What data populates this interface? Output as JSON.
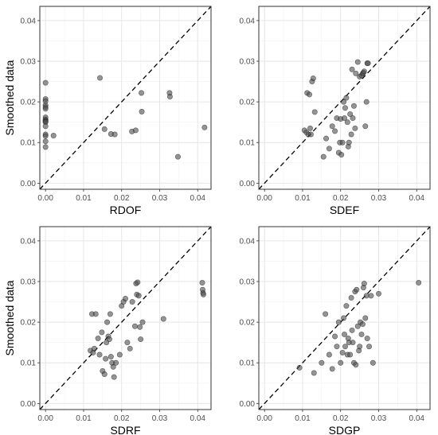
{
  "chart_data": [
    {
      "type": "scatter",
      "xlabel": "RDOF",
      "ylabel": "Smoothed data",
      "xlim": [
        -0.0015,
        0.0435
      ],
      "ylim": [
        -0.0015,
        0.0435
      ],
      "xticks": [
        "0.00",
        "0.01",
        "0.02",
        "0.03",
        "0.04"
      ],
      "yticks": [
        "0.00",
        "0.01",
        "0.02",
        "0.03",
        "0.04"
      ],
      "grid": true,
      "reference_line": "y = x, dashed",
      "point_color": "#4d4d4d",
      "x": [
        0.0,
        0.0,
        0.0,
        0.0,
        0.0,
        0.0,
        0.0,
        0.0,
        0.0,
        0.0,
        0.0,
        0.0,
        0.0,
        0.0,
        0.0,
        0.0,
        0.0021,
        0.0143,
        0.0155,
        0.0172,
        0.0182,
        0.0227,
        0.0237,
        0.0252,
        0.0253,
        0.0326,
        0.0327,
        0.0348,
        0.0418
      ],
      "y": [
        0.0247,
        0.0207,
        0.0202,
        0.0192,
        0.0187,
        0.0183,
        0.0162,
        0.0157,
        0.0154,
        0.0152,
        0.015,
        0.014,
        0.012,
        0.0116,
        0.0103,
        0.0089,
        0.0117,
        0.0259,
        0.0133,
        0.0121,
        0.012,
        0.0127,
        0.013,
        0.0222,
        0.0176,
        0.0222,
        0.0213,
        0.0065,
        0.0137
      ]
    },
    {
      "type": "scatter",
      "xlabel": "SDEF",
      "ylabel": "",
      "xlim": [
        -0.0015,
        0.0435
      ],
      "ylim": [
        -0.0015,
        0.0435
      ],
      "xticks": [
        "0.00",
        "0.01",
        "0.02",
        "0.03",
        "0.04"
      ],
      "yticks": [
        "0.00",
        "0.01",
        "0.02",
        "0.03",
        "0.04"
      ],
      "grid": true,
      "reference_line": "y = x, dashed",
      "point_color": "#4d4d4d",
      "x": [
        0.0105,
        0.011,
        0.0112,
        0.0115,
        0.0118,
        0.012,
        0.0122,
        0.0125,
        0.0128,
        0.0132,
        0.0155,
        0.0162,
        0.017,
        0.0178,
        0.0185,
        0.019,
        0.0195,
        0.0198,
        0.02,
        0.0202,
        0.0205,
        0.0208,
        0.021,
        0.0212,
        0.0215,
        0.0218,
        0.022,
        0.0222,
        0.0225,
        0.0228,
        0.023,
        0.0232,
        0.0235,
        0.0238,
        0.024,
        0.0245,
        0.025,
        0.0255,
        0.0258,
        0.026,
        0.0262,
        0.0265,
        0.0268,
        0.027,
        0.0272
      ],
      "y": [
        0.013,
        0.0125,
        0.0222,
        0.012,
        0.0218,
        0.0135,
        0.012,
        0.025,
        0.0258,
        0.0175,
        0.0065,
        0.011,
        0.0085,
        0.014,
        0.0128,
        0.016,
        0.0075,
        0.01,
        0.0158,
        0.007,
        0.01,
        0.02,
        0.016,
        0.0185,
        0.021,
        0.015,
        0.009,
        0.01,
        0.017,
        0.012,
        0.028,
        0.016,
        0.019,
        0.0135,
        0.027,
        0.0298,
        0.0262,
        0.0265,
        0.027,
        0.0272,
        0.0275,
        0.014,
        0.02,
        0.0295,
        0.0295
      ]
    },
    {
      "type": "scatter",
      "xlabel": "SDRF",
      "ylabel": "Smoothed data",
      "xlim": [
        -0.0015,
        0.0435
      ],
      "ylim": [
        -0.0015,
        0.0435
      ],
      "xticks": [
        "0.00",
        "0.01",
        "0.02",
        "0.03",
        "0.04"
      ],
      "yticks": [
        "0.00",
        "0.01",
        "0.02",
        "0.03",
        "0.04"
      ],
      "grid": true,
      "reference_line": "y = x, dashed",
      "point_color": "#4d4d4d",
      "x": [
        0.0118,
        0.0122,
        0.0125,
        0.0128,
        0.0132,
        0.0138,
        0.0142,
        0.0148,
        0.015,
        0.0155,
        0.0158,
        0.016,
        0.0162,
        0.0165,
        0.0168,
        0.017,
        0.0172,
        0.0175,
        0.0178,
        0.018,
        0.0185,
        0.0195,
        0.02,
        0.0205,
        0.021,
        0.0215,
        0.0222,
        0.0228,
        0.0235,
        0.0238,
        0.024,
        0.0242,
        0.0245,
        0.0248,
        0.025,
        0.0255,
        0.031,
        0.0412,
        0.0413,
        0.0414,
        0.0415
      ],
      "y": [
        0.013,
        0.022,
        0.0125,
        0.0135,
        0.022,
        0.016,
        0.012,
        0.0175,
        0.008,
        0.0072,
        0.011,
        0.015,
        0.02,
        0.0165,
        0.0158,
        0.022,
        0.0115,
        0.01,
        0.009,
        0.0065,
        0.01,
        0.012,
        0.024,
        0.025,
        0.0258,
        0.015,
        0.0135,
        0.025,
        0.019,
        0.0295,
        0.0268,
        0.0298,
        0.0265,
        0.0188,
        0.0158,
        0.02,
        0.0208,
        0.0297,
        0.028,
        0.0272,
        0.0268
      ]
    },
    {
      "type": "scatter",
      "xlabel": "SDGP",
      "ylabel": "",
      "xlim": [
        -0.0015,
        0.0435
      ],
      "ylim": [
        -0.0015,
        0.0435
      ],
      "xticks": [
        "0.00",
        "0.01",
        "0.02",
        "0.03",
        "0.04"
      ],
      "yticks": [
        "0.00",
        "0.01",
        "0.02",
        "0.03",
        "0.04"
      ],
      "grid": true,
      "reference_line": "y = x, dashed",
      "point_color": "#4d4d4d",
      "x": [
        0.0092,
        0.013,
        0.015,
        0.016,
        0.017,
        0.0178,
        0.0185,
        0.019,
        0.0195,
        0.02,
        0.0205,
        0.0208,
        0.021,
        0.0212,
        0.0215,
        0.0218,
        0.022,
        0.0222,
        0.0225,
        0.0228,
        0.023,
        0.0232,
        0.0235,
        0.0238,
        0.024,
        0.0242,
        0.0245,
        0.0248,
        0.025,
        0.0252,
        0.0255,
        0.0258,
        0.026,
        0.0262,
        0.0265,
        0.0268,
        0.027,
        0.0275,
        0.028,
        0.0285,
        0.03,
        0.0405
      ],
      "y": [
        0.0088,
        0.0075,
        0.01,
        0.022,
        0.012,
        0.0085,
        0.0165,
        0.014,
        0.02,
        0.01,
        0.0125,
        0.021,
        0.017,
        0.014,
        0.024,
        0.012,
        0.016,
        0.015,
        0.012,
        0.026,
        0.018,
        0.015,
        0.01,
        0.0275,
        0.0095,
        0.028,
        0.019,
        0.013,
        0.014,
        0.02,
        0.017,
        0.0195,
        0.0285,
        0.0295,
        0.021,
        0.0265,
        0.016,
        0.014,
        0.0265,
        0.01,
        0.027,
        0.0297
      ]
    }
  ]
}
